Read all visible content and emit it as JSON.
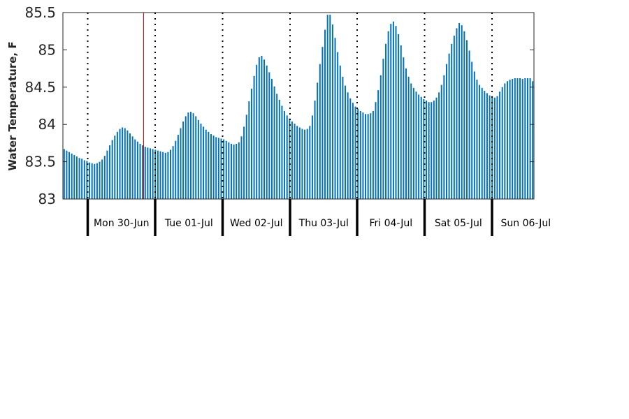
{
  "chart_data": {
    "type": "bar",
    "title": "",
    "xlabel": "",
    "ylabel": "Water Temperature, F",
    "ylim": [
      83,
      85.5
    ],
    "yticks": [
      "83",
      "83.5",
      "84",
      "84.5",
      "85",
      "85.5"
    ],
    "bar_color": "#0072bd",
    "grid": false,
    "legend": "none",
    "day_labels": [
      "Mon 30-Jun",
      "Tue 01-Jul",
      "Wed 02-Jul",
      "Thu 03-Jul",
      "Fri 04-Jul",
      "Sat 05-Jul",
      "Sun 06-Jul"
    ],
    "series": [
      {
        "values": [
          83.67,
          83.65,
          83.63,
          83.61,
          83.59,
          83.57,
          83.55,
          83.54,
          83.52,
          83.51,
          83.49,
          83.48,
          83.47,
          83.48,
          83.5,
          83.53,
          83.58,
          83.65,
          83.72,
          83.79,
          83.85,
          83.9,
          83.94,
          83.96,
          83.95,
          83.92,
          83.88,
          83.84,
          83.8,
          83.77,
          83.74,
          83.72,
          83.7,
          83.69,
          83.68,
          83.67,
          83.66,
          83.65,
          83.64,
          83.63,
          83.62,
          83.63,
          83.66,
          83.71,
          83.78,
          83.86,
          83.95,
          84.04,
          84.11,
          84.16,
          84.17,
          84.15,
          84.11,
          84.06,
          84.01,
          83.97,
          83.93,
          83.9,
          83.87,
          83.85,
          83.83,
          83.82,
          83.81,
          83.8,
          83.78,
          83.76,
          83.74,
          83.73,
          83.74,
          83.76,
          83.84,
          83.97,
          84.13,
          84.31,
          84.48,
          84.65,
          84.8,
          84.9,
          84.92,
          84.87,
          84.79,
          84.7,
          84.61,
          84.51,
          84.41,
          84.33,
          84.25,
          84.18,
          84.12,
          84.08,
          84.04,
          84.01,
          83.98,
          83.96,
          83.94,
          83.93,
          83.94,
          83.98,
          84.12,
          84.32,
          84.56,
          84.81,
          85.04,
          85.27,
          85.47,
          85.47,
          85.34,
          85.16,
          84.97,
          84.79,
          84.64,
          84.52,
          84.43,
          84.35,
          84.29,
          84.24,
          84.21,
          84.18,
          84.16,
          84.14,
          84.14,
          84.15,
          84.18,
          84.3,
          84.46,
          84.66,
          84.88,
          85.08,
          85.25,
          85.35,
          85.38,
          85.32,
          85.21,
          85.06,
          84.9,
          84.75,
          84.64,
          84.55,
          84.49,
          84.44,
          84.4,
          84.37,
          84.34,
          84.32,
          84.3,
          84.3,
          84.32,
          84.36,
          84.43,
          84.53,
          84.66,
          84.81,
          84.95,
          85.08,
          85.19,
          85.29,
          85.36,
          85.33,
          85.25,
          85.13,
          84.99,
          84.84,
          84.71,
          84.6,
          84.53,
          84.49,
          84.45,
          84.42,
          84.39,
          84.38,
          84.36,
          84.38,
          84.44,
          84.5,
          84.55,
          84.58,
          84.6,
          84.61,
          84.62,
          84.62,
          84.62,
          84.61,
          84.62,
          84.62,
          84.62,
          84.58
        ]
      }
    ]
  }
}
